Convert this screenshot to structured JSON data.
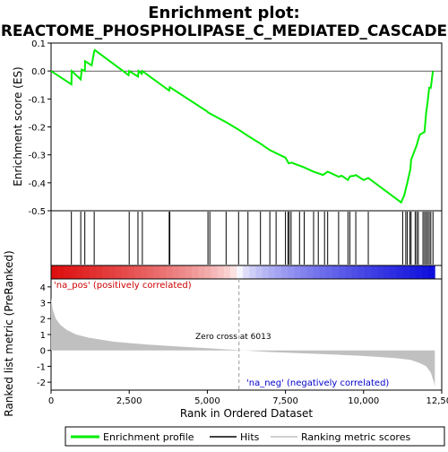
{
  "chart_data": {
    "type": "line",
    "title": "Enrichment plot:",
    "subtitle": "REACTOME_PHOSPHOLIPASE_C_MEDIATED_CASCADE",
    "es_panel": {
      "ylabel": "Enrichment score (ES)",
      "ylim": [
        -0.5,
        0.1
      ],
      "yticks": [
        0.1,
        0.0,
        -0.1,
        -0.2,
        -0.3,
        -0.4,
        -0.5
      ],
      "ytick_labels": [
        "0.1",
        "0.0",
        "-0.1",
        "-0.2",
        "-0.3",
        "-0.4",
        "-0.5"
      ],
      "series_name": "Enrichment profile",
      "series_color": "#00ee00",
      "points": [
        [
          0,
          0.0
        ],
        [
          650,
          -0.048
        ],
        [
          660,
          0.0
        ],
        [
          950,
          -0.03
        ],
        [
          980,
          0.005
        ],
        [
          1080,
          0.0
        ],
        [
          1090,
          0.035
        ],
        [
          1300,
          0.02
        ],
        [
          1380,
          0.07
        ],
        [
          1400,
          0.075
        ],
        [
          2480,
          -0.015
        ],
        [
          2500,
          0.0
        ],
        [
          2780,
          -0.02
        ],
        [
          2800,
          0.0
        ],
        [
          2900,
          -0.01
        ],
        [
          2920,
          0.0
        ],
        [
          3780,
          -0.07
        ],
        [
          3800,
          -0.058
        ],
        [
          5000,
          -0.145
        ],
        [
          5020,
          -0.148
        ],
        [
          5080,
          -0.152
        ],
        [
          5600,
          -0.183
        ],
        [
          6000,
          -0.21
        ],
        [
          6300,
          -0.232
        ],
        [
          6700,
          -0.26
        ],
        [
          7000,
          -0.283
        ],
        [
          7500,
          -0.31
        ],
        [
          7600,
          -0.33
        ],
        [
          7700,
          -0.328
        ],
        [
          8100,
          -0.345
        ],
        [
          8400,
          -0.36
        ],
        [
          8700,
          -0.372
        ],
        [
          8850,
          -0.36
        ],
        [
          9200,
          -0.378
        ],
        [
          9300,
          -0.375
        ],
        [
          9500,
          -0.39
        ],
        [
          9560,
          -0.377
        ],
        [
          9700,
          -0.375
        ],
        [
          9750,
          -0.372
        ],
        [
          10000,
          -0.39
        ],
        [
          10150,
          -0.383
        ],
        [
          11200,
          -0.47
        ],
        [
          11300,
          -0.445
        ],
        [
          11400,
          -0.4
        ],
        [
          11500,
          -0.35
        ],
        [
          11520,
          -0.318
        ],
        [
          11700,
          -0.265
        ],
        [
          11750,
          -0.245
        ],
        [
          11800,
          -0.228
        ],
        [
          11950,
          -0.218
        ],
        [
          12000,
          -0.15
        ],
        [
          12050,
          -0.11
        ],
        [
          12100,
          -0.06
        ],
        [
          12150,
          -0.06
        ],
        [
          12220,
          0.0
        ]
      ]
    },
    "hits": [
      650,
      950,
      1080,
      1380,
      2500,
      2780,
      2920,
      3780,
      3800,
      5020,
      5080,
      5600,
      6000,
      6300,
      6700,
      7000,
      7200,
      7500,
      7580,
      7620,
      7680,
      7950,
      8100,
      8400,
      8550,
      8750,
      8850,
      9200,
      9500,
      9560,
      9750,
      10150,
      11250,
      11350,
      11400,
      11480,
      11520,
      11650,
      11700,
      11750,
      11900,
      11950,
      12000,
      12050,
      12100,
      12150,
      12220
    ],
    "ranked_panel": {
      "ylabel": "Ranked list metric (PreRanked)",
      "xlabel": "Rank in Ordered Dataset",
      "xlim": [
        0,
        12500
      ],
      "ylim": [
        -2.5,
        4.5
      ],
      "xticks": [
        0,
        2500,
        5000,
        7500,
        10000,
        12500
      ],
      "xtick_labels": [
        "0",
        "2,500",
        "5,000",
        "7,500",
        "10,000",
        "12,500"
      ],
      "yticks": [
        4,
        3,
        2,
        1,
        0,
        -1,
        -2
      ],
      "ytick_labels": [
        "4",
        "3",
        "2",
        "1",
        "0",
        "-1",
        "-2"
      ],
      "series_name": "Ranking metric scores",
      "series_color": "#c0c0c0",
      "points": [
        [
          0,
          3.3
        ],
        [
          50,
          2.6
        ],
        [
          150,
          2.0
        ],
        [
          300,
          1.6
        ],
        [
          500,
          1.3
        ],
        [
          800,
          1.0
        ],
        [
          1200,
          0.8
        ],
        [
          2000,
          0.55
        ],
        [
          3000,
          0.38
        ],
        [
          4000,
          0.25
        ],
        [
          5000,
          0.14
        ],
        [
          6000,
          0.02
        ],
        [
          7000,
          -0.1
        ],
        [
          8000,
          -0.18
        ],
        [
          9000,
          -0.26
        ],
        [
          10000,
          -0.35
        ],
        [
          11000,
          -0.48
        ],
        [
          11500,
          -0.6
        ],
        [
          11800,
          -0.8
        ],
        [
          12000,
          -1.0
        ],
        [
          12150,
          -1.4
        ],
        [
          12250,
          -2.0
        ],
        [
          12280,
          -2.3
        ]
      ],
      "zero_cross_label": "Zero cross at 6013",
      "zero_cross": 6013,
      "pos_label": "'na_pos' (positively correlated)",
      "neg_label": "'na_neg' (negatively correlated)"
    },
    "total_ranks": 12280,
    "legend": {
      "placement": "bottom",
      "items": [
        {
          "label": "Enrichment profile",
          "color": "#00ee00"
        },
        {
          "label": "Hits",
          "color": "#000000"
        },
        {
          "label": "Ranking metric scores",
          "color": "#c0c0c0"
        }
      ]
    },
    "colors": {
      "pos_label": "#cc0000",
      "neg_label": "#0000cc",
      "heat_pos": "#dd0000",
      "heat_neg": "#0000dd"
    }
  }
}
